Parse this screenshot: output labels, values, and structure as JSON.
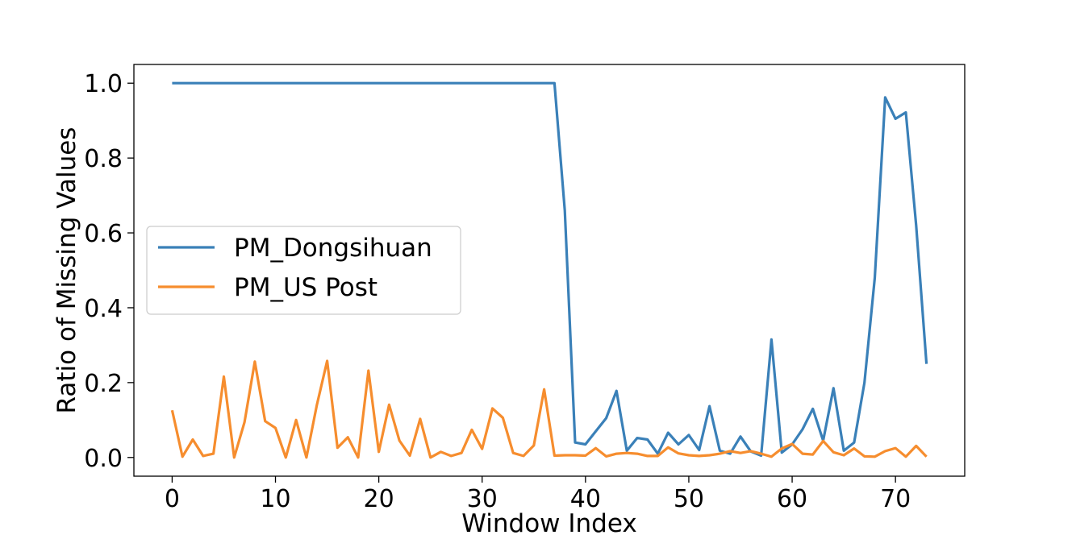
{
  "chart_data": {
    "type": "line",
    "title": "",
    "xlabel": "Window Index",
    "ylabel": "Ratio of Missing Values",
    "xlim": [
      -3.7,
      76.7
    ],
    "ylim": [
      -0.05,
      1.05
    ],
    "x_ticks": [
      0,
      10,
      20,
      30,
      40,
      50,
      60,
      70
    ],
    "y_ticks": [
      0.0,
      0.2,
      0.4,
      0.6,
      0.8,
      1.0
    ],
    "x_tick_labels": [
      "0",
      "10",
      "20",
      "30",
      "40",
      "50",
      "60",
      "70"
    ],
    "y_tick_labels": [
      "0.0",
      "0.2",
      "0.4",
      "0.6",
      "0.8",
      "1.0"
    ],
    "grid": false,
    "legend_position": "center-left",
    "series": [
      {
        "name": "PM_Dongsihuan",
        "color": "#3a80b8",
        "x": [
          0,
          1,
          2,
          3,
          4,
          5,
          6,
          7,
          8,
          9,
          10,
          11,
          12,
          13,
          14,
          15,
          16,
          17,
          18,
          19,
          20,
          21,
          22,
          23,
          24,
          25,
          26,
          27,
          28,
          29,
          30,
          31,
          32,
          33,
          34,
          35,
          36,
          37,
          38,
          39,
          40,
          41,
          42,
          43,
          44,
          45,
          46,
          47,
          48,
          49,
          50,
          51,
          52,
          53,
          54,
          55,
          56,
          57,
          58,
          59,
          60,
          61,
          62,
          63,
          64,
          65,
          66,
          67,
          68,
          69,
          70,
          71,
          72,
          73
        ],
        "values": [
          1.0,
          1.0,
          1.0,
          1.0,
          1.0,
          1.0,
          1.0,
          1.0,
          1.0,
          1.0,
          1.0,
          1.0,
          1.0,
          1.0,
          1.0,
          1.0,
          1.0,
          1.0,
          1.0,
          1.0,
          1.0,
          1.0,
          1.0,
          1.0,
          1.0,
          1.0,
          1.0,
          1.0,
          1.0,
          1.0,
          1.0,
          1.0,
          1.0,
          1.0,
          1.0,
          1.0,
          1.0,
          1.0,
          0.66,
          0.04,
          0.035,
          0.07,
          0.105,
          0.178,
          0.018,
          0.052,
          0.048,
          0.01,
          0.066,
          0.035,
          0.06,
          0.02,
          0.137,
          0.018,
          0.01,
          0.056,
          0.016,
          0.005,
          0.315,
          0.013,
          0.035,
          0.075,
          0.13,
          0.045,
          0.185,
          0.018,
          0.04,
          0.2,
          0.48,
          0.962,
          0.905,
          0.922,
          0.62,
          0.25
        ]
      },
      {
        "name": "PM_US Post",
        "color": "#f68d2e",
        "x": [
          0,
          1,
          2,
          3,
          4,
          5,
          6,
          7,
          8,
          9,
          10,
          11,
          12,
          13,
          14,
          15,
          16,
          17,
          18,
          19,
          20,
          21,
          22,
          23,
          24,
          25,
          26,
          27,
          28,
          29,
          30,
          31,
          32,
          33,
          34,
          35,
          36,
          37,
          38,
          39,
          40,
          41,
          42,
          43,
          44,
          45,
          46,
          47,
          48,
          49,
          50,
          51,
          52,
          53,
          54,
          55,
          56,
          57,
          58,
          59,
          60,
          61,
          62,
          63,
          64,
          65,
          66,
          67,
          68,
          69,
          70,
          71,
          72,
          73
        ],
        "values": [
          0.126,
          0.002,
          0.048,
          0.004,
          0.01,
          0.216,
          0.0,
          0.094,
          0.256,
          0.097,
          0.079,
          0.0,
          0.1,
          0.0,
          0.14,
          0.258,
          0.026,
          0.054,
          0.0,
          0.232,
          0.015,
          0.141,
          0.045,
          0.005,
          0.103,
          0.0,
          0.015,
          0.004,
          0.012,
          0.074,
          0.023,
          0.131,
          0.106,
          0.012,
          0.004,
          0.032,
          0.182,
          0.005,
          0.006,
          0.006,
          0.005,
          0.025,
          0.003,
          0.01,
          0.012,
          0.01,
          0.004,
          0.004,
          0.027,
          0.011,
          0.006,
          0.004,
          0.006,
          0.01,
          0.017,
          0.012,
          0.017,
          0.01,
          0.002,
          0.024,
          0.036,
          0.01,
          0.008,
          0.044,
          0.014,
          0.006,
          0.024,
          0.003,
          0.002,
          0.017,
          0.025,
          0.002,
          0.031,
          0.002
        ]
      }
    ]
  }
}
